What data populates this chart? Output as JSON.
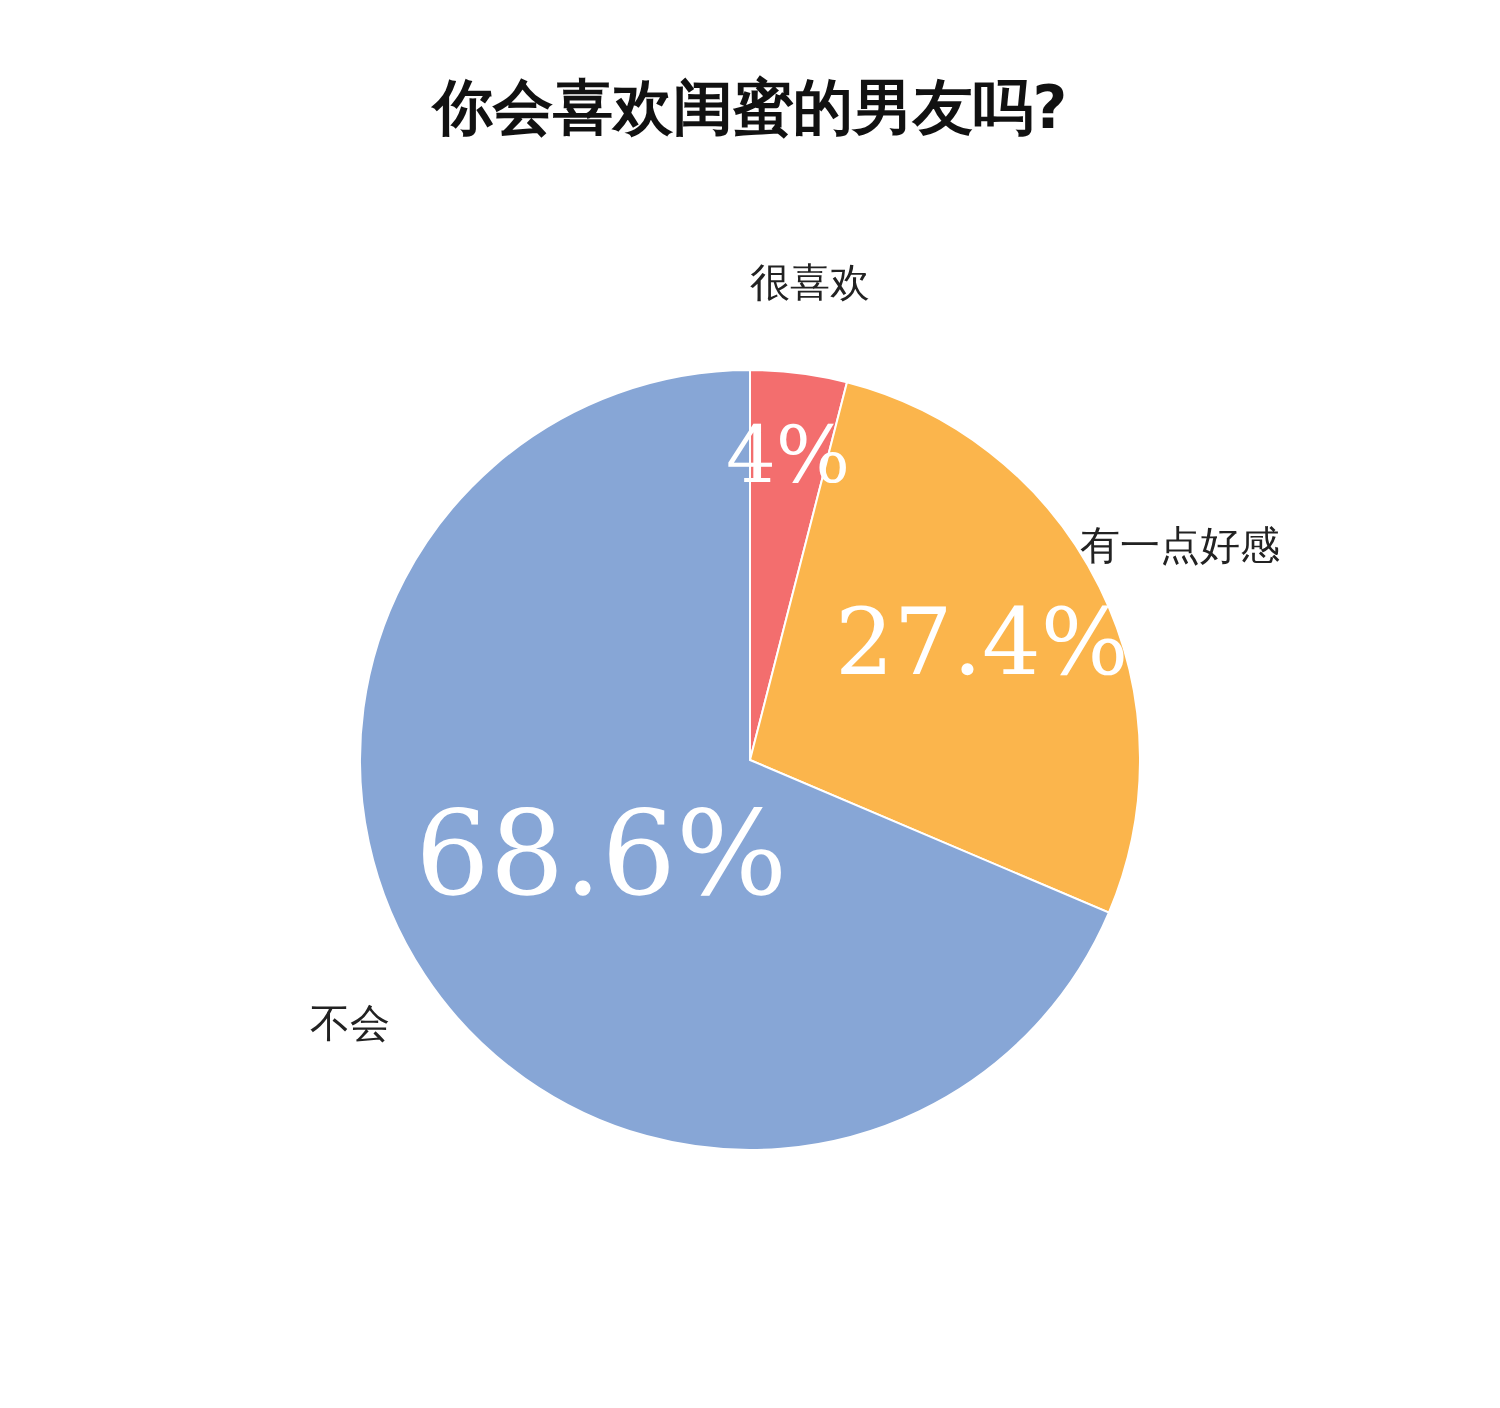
{
  "chart_data": {
    "type": "pie",
    "title": "你会喜欢闺蜜的男友吗?",
    "categories": [
      "很喜欢",
      "有一点好感",
      "不会"
    ],
    "values": [
      4,
      27.4,
      68.6
    ],
    "colors": [
      "#f36e6e",
      "#fbb54c",
      "#87a6d6"
    ],
    "value_labels": [
      "4%",
      "27.4%",
      "68.6%"
    ],
    "legend": false
  }
}
